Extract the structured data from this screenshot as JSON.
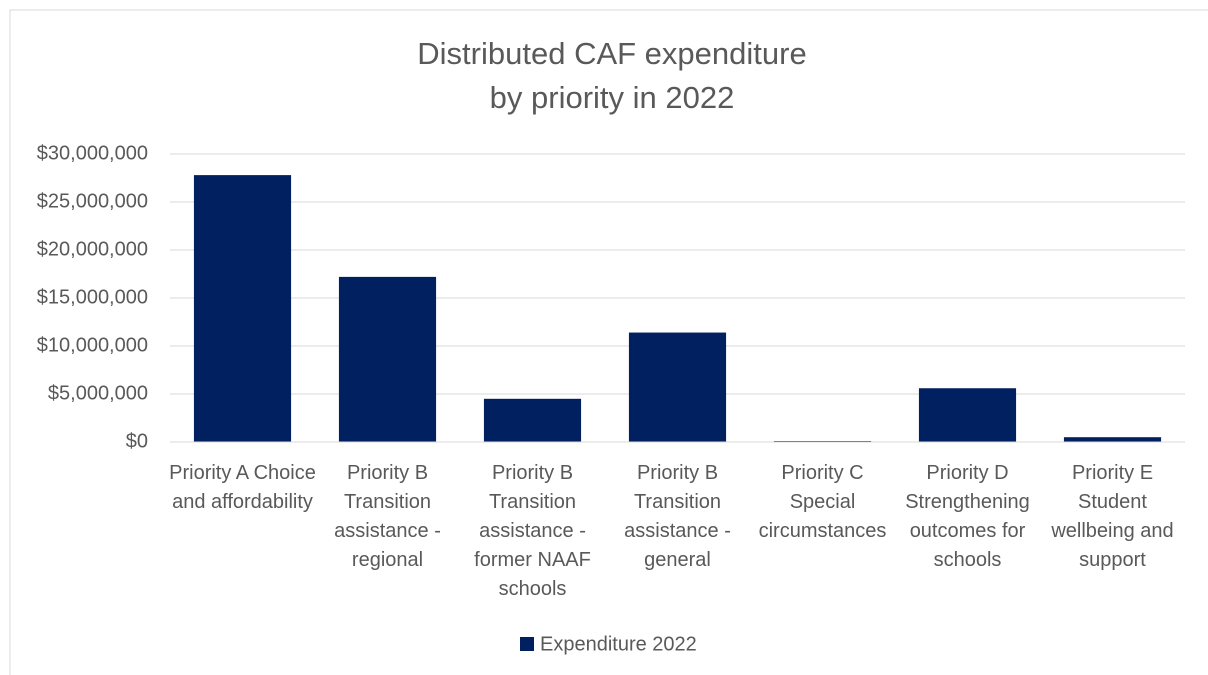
{
  "chart_data": {
    "type": "bar",
    "title": [
      "Distributed CAF expenditure",
      "by priority in 2022"
    ],
    "categories": [
      "Priority A Choice and affordability",
      "Priority B Transition assistance - regional",
      "Priority B Transition assistance - former NAAF schools",
      "Priority B Transition assistance - general",
      "Priority C Special circumstances",
      "Priority D Strengthening outcomes for schools",
      "Priority E Student wellbeing and support"
    ],
    "series": [
      {
        "name": "Expenditure 2022",
        "color": "#002060",
        "values": [
          27800000,
          17200000,
          4500000,
          11400000,
          100000,
          5600000,
          500000
        ]
      }
    ],
    "ylim": [
      0,
      30000000
    ],
    "yticks": [
      {
        "value": 0,
        "label": "$0"
      },
      {
        "value": 5000000,
        "label": "$5,000,000"
      },
      {
        "value": 10000000,
        "label": "$10,000,000"
      },
      {
        "value": 15000000,
        "label": "$15,000,000"
      },
      {
        "value": 20000000,
        "label": "$20,000,000"
      },
      {
        "value": 25000000,
        "label": "$25,000,000"
      },
      {
        "value": 30000000,
        "label": "$30,000,000"
      }
    ],
    "grid": true,
    "legend": "bottom"
  }
}
